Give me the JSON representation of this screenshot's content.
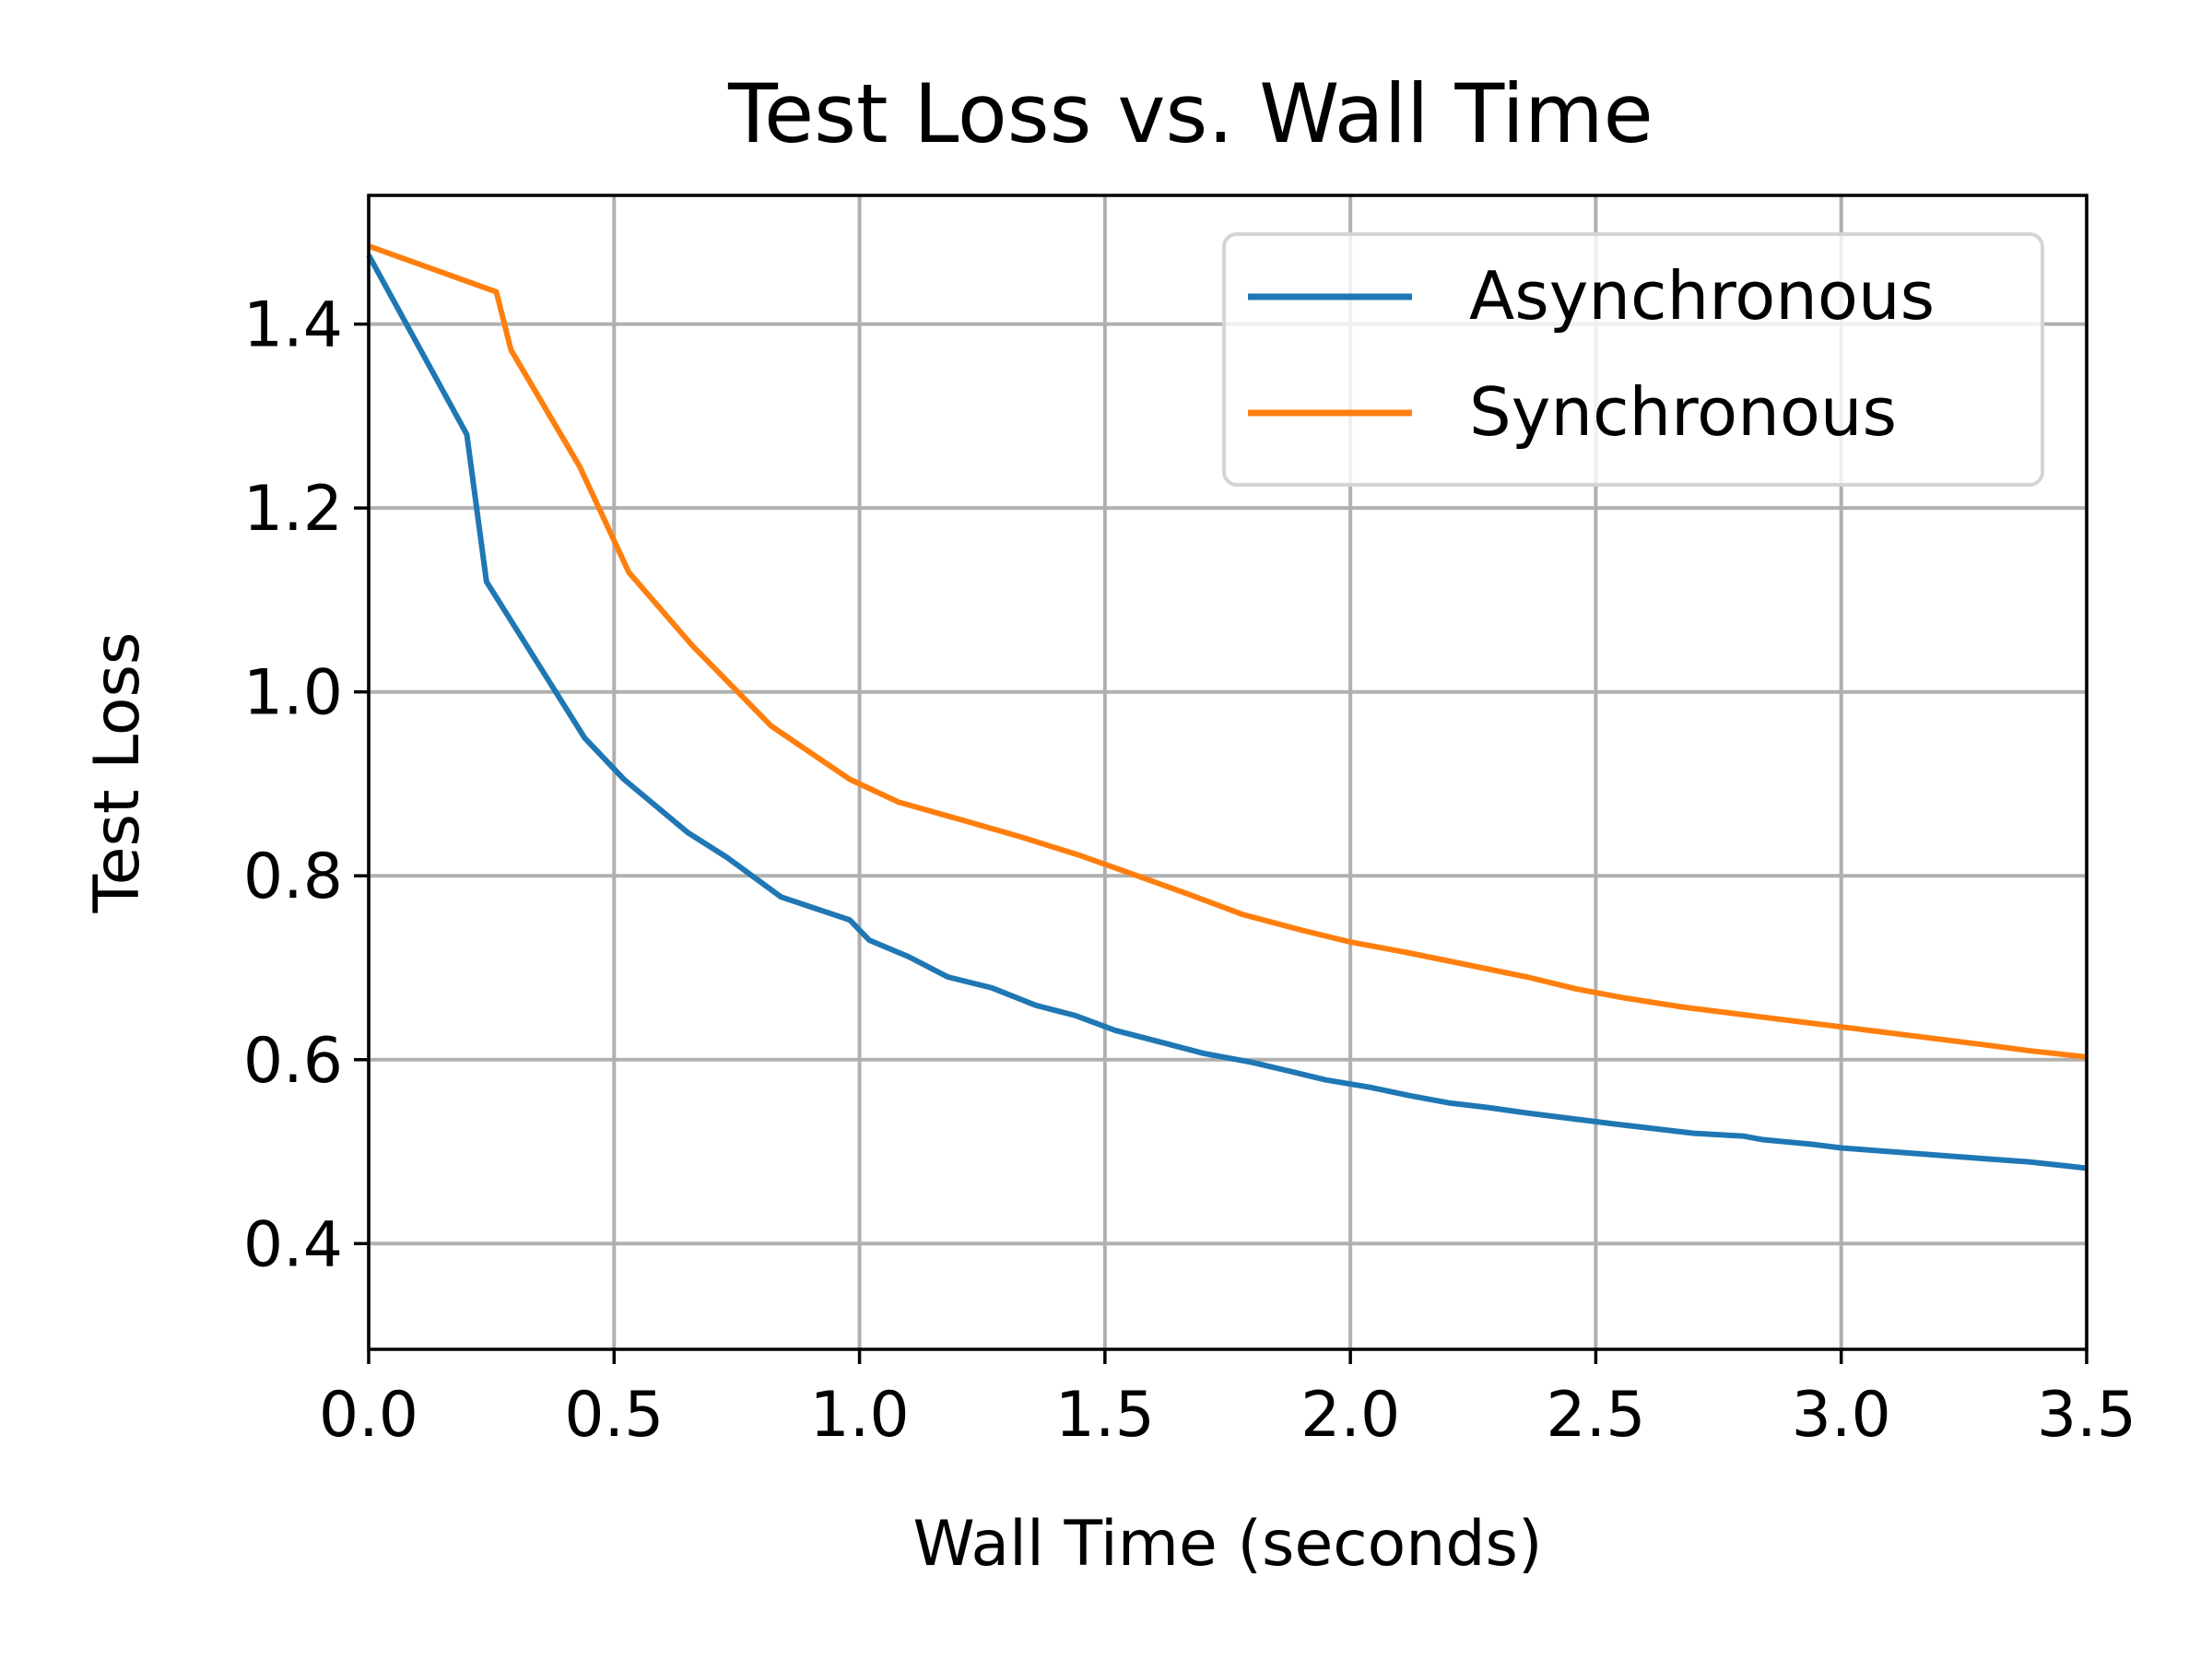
{
  "chart_data": {
    "type": "line",
    "title": "Test Loss vs. Wall Time",
    "xlabel": "Wall Time (seconds)",
    "ylabel": "Test Loss",
    "xlim": [
      0.0,
      3.5
    ],
    "ylim": [
      0.285,
      1.54
    ],
    "xticks": [
      0.0,
      0.5,
      1.0,
      1.5,
      2.0,
      2.5,
      3.0,
      3.5
    ],
    "xtick_labels": [
      "0.0",
      "0.5",
      "1.0",
      "1.5",
      "2.0",
      "2.5",
      "3.0",
      "3.5"
    ],
    "yticks": [
      0.4,
      0.6,
      0.8,
      1.0,
      1.2,
      1.4
    ],
    "ytick_labels": [
      "0.4",
      "0.6",
      "0.8",
      "1.0",
      "1.2",
      "1.4"
    ],
    "grid": true,
    "legend_position": "top-right",
    "series": [
      {
        "name": "Asynchronous",
        "color": "#1f77b4",
        "x": [
          0.0,
          0.2,
          0.24,
          0.44,
          0.52,
          0.65,
          0.73,
          0.84,
          0.98,
          1.02,
          1.1,
          1.18,
          1.27,
          1.36,
          1.44,
          1.52,
          1.6,
          1.7,
          1.8,
          1.88,
          1.95,
          2.04,
          2.12,
          2.2,
          2.28,
          2.36,
          2.45,
          2.54,
          2.62,
          2.7,
          2.8,
          2.84,
          2.94,
          3.0,
          3.1,
          3.2,
          3.3,
          3.38,
          3.45,
          3.5
        ],
        "y": [
          1.475,
          1.28,
          1.12,
          0.95,
          0.905,
          0.847,
          0.82,
          0.777,
          0.752,
          0.73,
          0.712,
          0.69,
          0.678,
          0.659,
          0.648,
          0.632,
          0.621,
          0.607,
          0.597,
          0.587,
          0.578,
          0.57,
          0.561,
          0.553,
          0.548,
          0.542,
          0.536,
          0.53,
          0.525,
          0.52,
          0.517,
          0.513,
          0.508,
          0.504,
          0.5,
          0.496,
          0.492,
          0.489,
          0.485,
          0.482
        ]
      },
      {
        "name": "Synchronous",
        "color": "#ff7f0e",
        "x": [
          0.0,
          0.26,
          0.29,
          0.43,
          0.53,
          0.66,
          0.82,
          0.98,
          1.08,
          1.2,
          1.33,
          1.45,
          1.55,
          1.67,
          1.78,
          1.9,
          2.0,
          2.12,
          2.24,
          2.36,
          2.46,
          2.56,
          2.68,
          2.8,
          2.92,
          3.04,
          3.16,
          3.28,
          3.38,
          3.5
        ],
        "y": [
          1.485,
          1.435,
          1.372,
          1.245,
          1.13,
          1.05,
          0.963,
          0.905,
          0.88,
          0.862,
          0.842,
          0.822,
          0.803,
          0.78,
          0.758,
          0.741,
          0.728,
          0.716,
          0.703,
          0.69,
          0.677,
          0.667,
          0.657,
          0.649,
          0.641,
          0.633,
          0.625,
          0.617,
          0.61,
          0.603
        ]
      }
    ]
  }
}
